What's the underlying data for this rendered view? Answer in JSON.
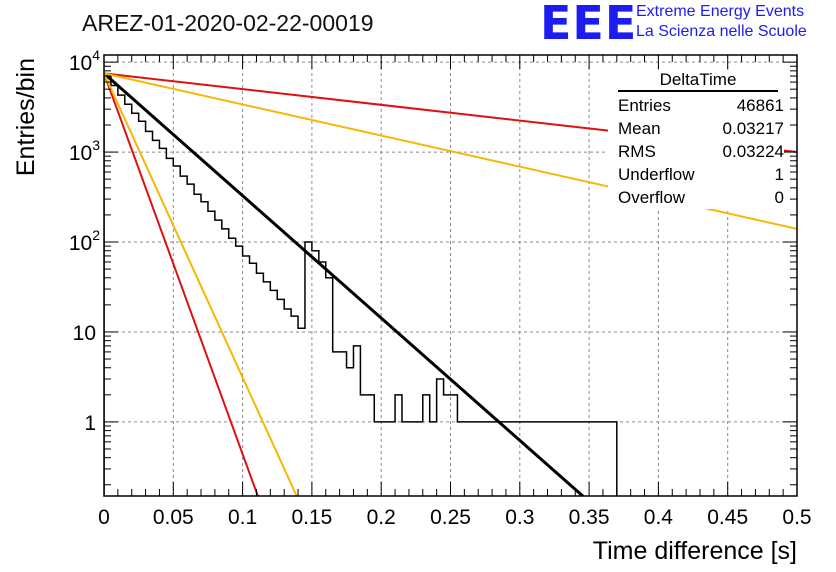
{
  "header": {
    "title": "AREZ-01-2020-02-22-00019",
    "logo_text": "EEE",
    "logo_line1": "Extreme Energy Events",
    "logo_line2": "La Scienza nelle Scuole"
  },
  "stats_box": {
    "title": "DeltaTime",
    "rows": [
      {
        "label": "Entries",
        "value": "46861"
      },
      {
        "label": "Mean",
        "value": "0.03217"
      },
      {
        "label": "RMS",
        "value": "0.03224"
      },
      {
        "label": "Underflow",
        "value": "1"
      },
      {
        "label": "Overflow",
        "value": "0"
      }
    ]
  },
  "chart_data": {
    "type": "line",
    "xlabel": "Time difference [s]",
    "ylabel": "Entries/bin",
    "xlim": [
      0,
      0.5
    ],
    "ylim": [
      0.15,
      12000
    ],
    "y_scale": "log",
    "grid": true,
    "x_ticks": [
      "0",
      "0.05",
      "0.1",
      "0.15",
      "0.2",
      "0.25",
      "0.3",
      "0.35",
      "0.4",
      "0.45",
      "0.5"
    ],
    "y_ticks": [
      {
        "value": 1,
        "label": "1"
      },
      {
        "value": 10,
        "label": "10"
      },
      {
        "value": 100,
        "label": "10",
        "exp": "2"
      },
      {
        "value": 1000,
        "label": "10",
        "exp": "3"
      },
      {
        "value": 10000,
        "label": "10",
        "exp": "4"
      }
    ],
    "histogram": {
      "bin_width": 0.005,
      "values": [
        7000,
        5500,
        4300,
        3400,
        2700,
        2200,
        1700,
        1350,
        1100,
        850,
        700,
        540,
        440,
        340,
        280,
        220,
        175,
        140,
        110,
        90,
        70,
        58,
        45,
        36,
        29,
        23,
        18,
        15,
        11,
        100,
        80,
        60,
        40,
        6,
        6,
        4,
        7,
        2,
        2,
        1,
        1,
        1,
        2,
        1,
        1,
        1,
        2,
        1,
        3,
        2,
        2,
        1,
        1,
        1,
        1,
        1,
        1,
        1,
        1,
        1,
        1,
        1,
        1,
        1,
        1,
        1,
        1,
        1,
        1,
        1,
        1,
        1,
        1,
        1
      ]
    },
    "series": [
      {
        "color": "#000000",
        "x": [
          0,
          0.35
        ],
        "y": [
          7500,
          0.13
        ]
      },
      {
        "color": "#dd1111",
        "x": [
          0,
          0.5
        ],
        "y": [
          7500,
          1000
        ]
      },
      {
        "color": "#f5b800",
        "x": [
          0,
          0.5
        ],
        "y": [
          7500,
          140
        ]
      },
      {
        "color": "#dd1111",
        "x": [
          0,
          0.111
        ],
        "y": [
          7500,
          0.15
        ]
      },
      {
        "color": "#f5b800",
        "x": [
          0,
          0.139
        ],
        "y": [
          7500,
          0.15
        ]
      }
    ]
  }
}
